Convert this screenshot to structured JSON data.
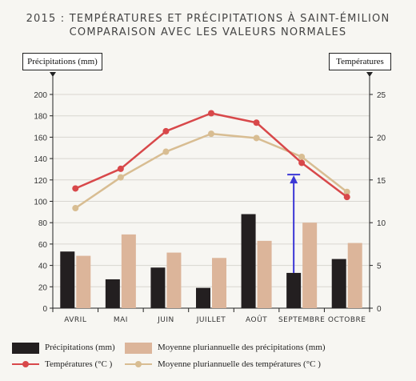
{
  "title_line1": "2015 : TEMPÉRATURES ET PRÉCIPITATIONS À SAINT-ÉMILION",
  "title_line2": "COMPARAISON AVEC LES VALEURS NORMALES",
  "colors": {
    "precip": "#231f20",
    "precip_normal": "#dcb59a",
    "temp": "#d8484a",
    "temp_normal": "#d8bd92",
    "arrow": "#3b37d6"
  },
  "chart_data": {
    "type": "bar",
    "categories": [
      "AVRIL",
      "MAI",
      "JUIN",
      "JUILLET",
      "AOÛT",
      "SEPTEMBRE",
      "OCTOBRE"
    ],
    "ylabel": "Précipitations (mm)",
    "y2label": "Températures",
    "ylim": [
      0,
      200
    ],
    "y2lim": [
      0,
      25
    ],
    "yticks": [
      "0",
      "20",
      "40",
      "60",
      "80",
      "100",
      "120",
      "140",
      "160",
      "180",
      "200"
    ],
    "y2ticks": [
      "0",
      "5",
      "10",
      "15",
      "20",
      "25"
    ],
    "grid": true,
    "series": [
      {
        "name": "Précipitations (mm)",
        "kind": "bar",
        "axis": "left",
        "values": [
          53,
          27,
          38,
          19,
          88,
          33,
          46
        ]
      },
      {
        "name": "Moyenne pluriannuelle des précipitations (mm)",
        "kind": "bar",
        "axis": "left",
        "values": [
          49,
          69,
          52,
          47,
          63,
          80,
          61
        ]
      },
      {
        "name": "Températures (°C )",
        "kind": "line",
        "axis": "right",
        "values": [
          14,
          16.3,
          20.7,
          22.8,
          21.7,
          17,
          13
        ]
      },
      {
        "name": "Moyenne pluriannuelle des températures (°C )",
        "kind": "line",
        "axis": "right",
        "values": [
          11.7,
          15.3,
          18.3,
          20.4,
          19.9,
          17.7,
          13.6
        ]
      }
    ],
    "annotation": {
      "type": "arrow",
      "category": "SEPTEMBRE",
      "from": 33,
      "to": 125
    }
  }
}
